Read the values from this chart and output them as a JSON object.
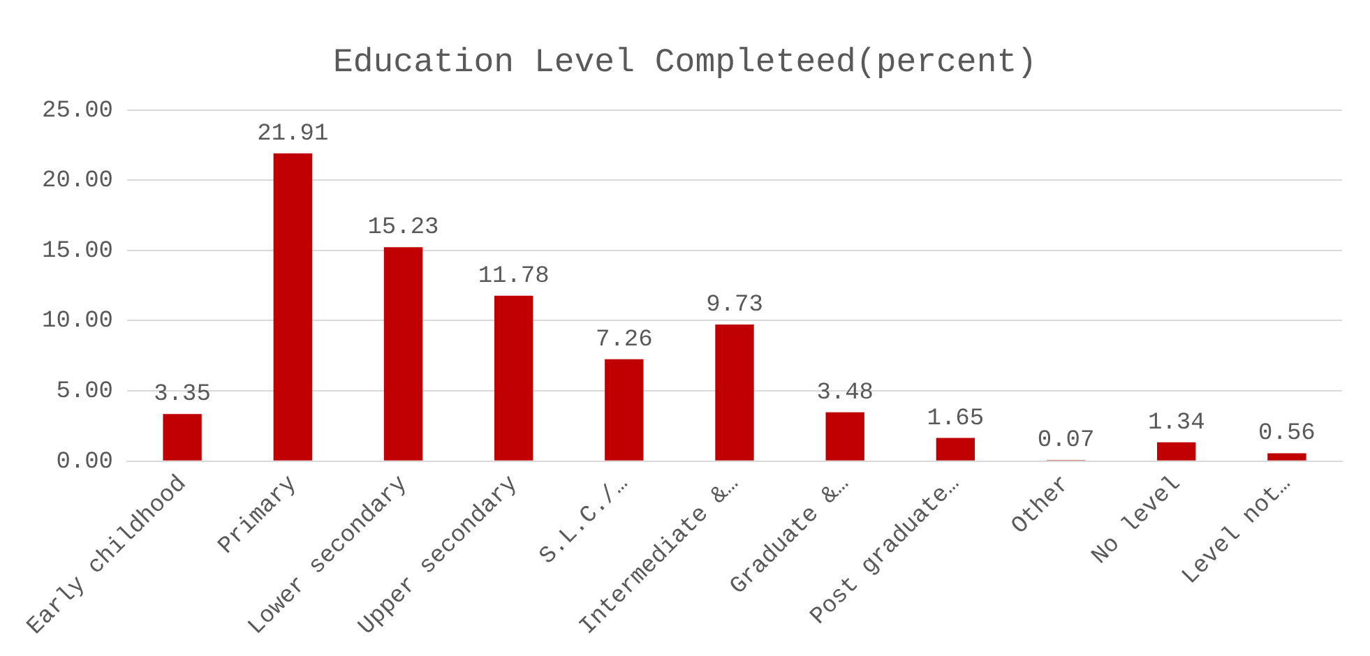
{
  "chart_data": {
    "type": "bar",
    "title": "Education Level Completeed(percent)",
    "categories": [
      "Early childhood",
      "Primary",
      "Lower secondary",
      "Upper secondary",
      "S.L.C./…",
      "Intermediate &…",
      "Graduate &…",
      "Post graduate…",
      "Other",
      "No level",
      "Level not…"
    ],
    "values": [
      3.35,
      21.91,
      15.23,
      11.78,
      7.26,
      9.73,
      3.48,
      1.65,
      0.07,
      1.34,
      0.56
    ],
    "color": "#c00000",
    "ylim": [
      0,
      25
    ],
    "yticks": [
      {
        "value": 0,
        "label": "0.00"
      },
      {
        "value": 5,
        "label": "5.00"
      },
      {
        "value": 10,
        "label": "10.00"
      },
      {
        "value": 15,
        "label": "15.00"
      },
      {
        "value": 20,
        "label": "20.00"
      },
      {
        "value": 25,
        "label": "25.00"
      }
    ],
    "grid": "y",
    "data_labels": true
  }
}
